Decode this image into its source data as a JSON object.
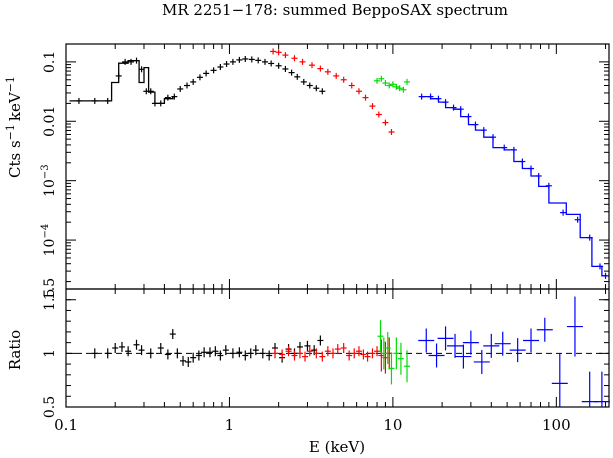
{
  "chart_data": [
    {
      "type": "scatter",
      "panel": "spectrum",
      "title": "MR 2251−178: summed BeppoSAX spectrum",
      "ylabel_main": "Cts s",
      "ylabel_sup1": "−1",
      "ylabel_mid": "keV",
      "ylabel_sup2": "−1",
      "x_scale": "log",
      "y_scale": "log",
      "xlim": [
        0.1,
        210
      ],
      "ylim": [
        1.5e-05,
        0.2
      ],
      "y_ticks": [
        {
          "value": 0.1,
          "label": "0.1",
          "exp": ""
        },
        {
          "value": 0.01,
          "label": "0.01",
          "exp": ""
        },
        {
          "value": 0.001,
          "label": "10",
          "exp": "−3"
        },
        {
          "value": 0.0001,
          "label": "10",
          "exp": "−4"
        },
        {
          "value": 1.5e-05,
          "label": "1.5",
          "exp": ""
        }
      ],
      "grid": false,
      "series": [
        {
          "color": "#000000",
          "points": [
            [
              0.12,
              0.022
            ],
            [
              0.15,
              0.022
            ],
            [
              0.18,
              0.022
            ],
            [
              0.21,
              0.058
            ],
            [
              0.23,
              0.1
            ],
            [
              0.25,
              0.1
            ],
            [
              0.27,
              0.105
            ],
            [
              0.29,
              0.075
            ],
            [
              0.31,
              0.032
            ],
            [
              0.33,
              0.032
            ],
            [
              0.35,
              0.02
            ],
            [
              0.38,
              0.02
            ],
            [
              0.42,
              0.025
            ],
            [
              0.46,
              0.026
            ],
            [
              0.5,
              0.035
            ],
            [
              0.55,
              0.04
            ],
            [
              0.6,
              0.046
            ],
            [
              0.66,
              0.055
            ],
            [
              0.72,
              0.064
            ],
            [
              0.8,
              0.072
            ],
            [
              0.88,
              0.082
            ],
            [
              0.96,
              0.092
            ],
            [
              1.05,
              0.1
            ],
            [
              1.15,
              0.108
            ],
            [
              1.25,
              0.112
            ],
            [
              1.37,
              0.11
            ],
            [
              1.5,
              0.106
            ],
            [
              1.65,
              0.1
            ],
            [
              1.8,
              0.094
            ],
            [
              2.0,
              0.086
            ],
            [
              2.2,
              0.076
            ],
            [
              2.4,
              0.066
            ],
            [
              2.6,
              0.056
            ],
            [
              2.85,
              0.046
            ],
            [
              3.1,
              0.04
            ],
            [
              3.4,
              0.036
            ],
            [
              3.7,
              0.032
            ]
          ],
          "step": [
            [
              0.105,
              0.022
            ],
            [
              0.19,
              0.022
            ],
            [
              0.19,
              0.045
            ],
            [
              0.21,
              0.045
            ],
            [
              0.21,
              0.095
            ],
            [
              0.24,
              0.095
            ],
            [
              0.24,
              0.105
            ],
            [
              0.28,
              0.105
            ],
            [
              0.28,
              0.045
            ],
            [
              0.3,
              0.045
            ],
            [
              0.3,
              0.08
            ],
            [
              0.32,
              0.08
            ],
            [
              0.32,
              0.031
            ],
            [
              0.35,
              0.031
            ],
            [
              0.35,
              0.02
            ],
            [
              0.4,
              0.02
            ],
            [
              0.4,
              0.024
            ],
            [
              0.45,
              0.024
            ],
            [
              0.45,
              0.026
            ]
          ]
        },
        {
          "color": "#ff0000",
          "points": [
            [
              1.85,
              0.15
            ],
            [
              2.0,
              0.145
            ],
            [
              2.2,
              0.13
            ],
            [
              2.5,
              0.115
            ],
            [
              2.8,
              0.1
            ],
            [
              3.2,
              0.088
            ],
            [
              3.6,
              0.077
            ],
            [
              4.0,
              0.068
            ],
            [
              4.5,
              0.058
            ],
            [
              5.0,
              0.05
            ],
            [
              5.6,
              0.04
            ],
            [
              6.2,
              0.032
            ],
            [
              6.8,
              0.025
            ],
            [
              7.5,
              0.018
            ],
            [
              8.2,
              0.013
            ],
            [
              9.0,
              0.0095
            ],
            [
              9.8,
              0.0066
            ]
          ]
        },
        {
          "color": "#00dd00",
          "points": [
            [
              8.0,
              0.048
            ],
            [
              8.5,
              0.052
            ],
            [
              9.0,
              0.044
            ],
            [
              9.5,
              0.04
            ],
            [
              10.0,
              0.042
            ],
            [
              10.5,
              0.038
            ],
            [
              11.0,
              0.036
            ],
            [
              11.6,
              0.034
            ],
            [
              12.2,
              0.046
            ]
          ]
        },
        {
          "color": "#0000ff",
          "points": [
            [
              15.0,
              0.026
            ],
            [
              17.0,
              0.026
            ],
            [
              19.0,
              0.024
            ],
            [
              21.0,
              0.021
            ],
            [
              23.5,
              0.017
            ],
            [
              26.0,
              0.016
            ],
            [
              29.0,
              0.012
            ],
            [
              32.0,
              0.0088
            ],
            [
              36.0,
              0.0071
            ],
            [
              41.0,
              0.0054
            ],
            [
              48.0,
              0.0036
            ],
            [
              55.0,
              0.0033
            ],
            [
              62.0,
              0.0021
            ],
            [
              70.0,
              0.0016
            ],
            [
              78.0,
              0.0012
            ],
            [
              90.0,
              0.00082
            ],
            [
              110.0,
              0.00029
            ],
            [
              135.0,
              0.00022
            ],
            [
              160.0,
              0.00011
            ],
            [
              185.0,
              3.6e-05
            ],
            [
              200.0,
              2.5e-05
            ]
          ],
          "step": [
            [
              15.0,
              0.026
            ],
            [
              17.0,
              0.026
            ],
            [
              17.0,
              0.024
            ],
            [
              19.0,
              0.024
            ],
            [
              19.0,
              0.021
            ],
            [
              21.0,
              0.021
            ],
            [
              21.0,
              0.017
            ],
            [
              23.5,
              0.017
            ],
            [
              23.5,
              0.016
            ],
            [
              26.0,
              0.016
            ],
            [
              26.0,
              0.012
            ],
            [
              29.0,
              0.012
            ],
            [
              29.0,
              0.0088
            ],
            [
              32.0,
              0.0088
            ],
            [
              32.0,
              0.0071
            ],
            [
              36.0,
              0.0071
            ],
            [
              36.0,
              0.0054
            ],
            [
              41.0,
              0.0054
            ],
            [
              41.0,
              0.0036
            ],
            [
              48.0,
              0.0036
            ],
            [
              48.0,
              0.0033
            ],
            [
              55.0,
              0.0033
            ],
            [
              55.0,
              0.0021
            ],
            [
              62.0,
              0.0021
            ],
            [
              62.0,
              0.0016
            ],
            [
              70.0,
              0.0016
            ],
            [
              70.0,
              0.0012
            ],
            [
              78.0,
              0.0012
            ],
            [
              78.0,
              0.0008
            ],
            [
              90.0,
              0.0008
            ],
            [
              90.0,
              0.00042
            ],
            [
              115.0,
              0.00042
            ],
            [
              115.0,
              0.00027
            ],
            [
              140.0,
              0.00027
            ],
            [
              140.0,
              0.00011
            ],
            [
              165.0,
              0.00011
            ],
            [
              165.0,
              3.6e-05
            ],
            [
              190.0,
              3.6e-05
            ],
            [
              190.0,
              2.5e-05
            ],
            [
              205.0,
              2.5e-05
            ]
          ]
        }
      ]
    },
    {
      "type": "scatter",
      "panel": "ratio",
      "ylabel": "Ratio",
      "xlabel": "E (keV)",
      "x_scale": "log",
      "xlim": [
        0.1,
        210
      ],
      "ylim": [
        0.5,
        1.6
      ],
      "reference_line": 1,
      "x_ticks": [
        {
          "value": 0.1,
          "label": "0.1"
        },
        {
          "value": 1,
          "label": "1"
        },
        {
          "value": 10,
          "label": "10"
        },
        {
          "value": 100,
          "label": "100"
        }
      ],
      "y_ticks": [
        {
          "value": 0.5,
          "label": "0.5"
        },
        {
          "value": 1,
          "label": "1"
        },
        {
          "value": 1.5,
          "label": "1.5"
        }
      ],
      "series": [
        {
          "color": "#000000",
          "points": [
            [
              0.15,
              1.0
            ],
            [
              0.18,
              1.0
            ],
            [
              0.2,
              1.05
            ],
            [
              0.22,
              1.06
            ],
            [
              0.24,
              1.02
            ],
            [
              0.27,
              1.08
            ],
            [
              0.29,
              1.03
            ],
            [
              0.33,
              1.0
            ],
            [
              0.38,
              1.05
            ],
            [
              0.42,
              0.99
            ],
            [
              0.45,
              1.18
            ],
            [
              0.48,
              1.0
            ],
            [
              0.52,
              0.93
            ],
            [
              0.56,
              0.92
            ],
            [
              0.6,
              0.96
            ],
            [
              0.65,
              0.98
            ],
            [
              0.7,
              1.01
            ],
            [
              0.76,
              1.01
            ],
            [
              0.82,
              1.02
            ],
            [
              0.88,
              0.98
            ],
            [
              0.95,
              1.03
            ],
            [
              1.05,
              1.0
            ],
            [
              1.15,
              1.01
            ],
            [
              1.25,
              0.98
            ],
            [
              1.35,
              1.0
            ],
            [
              1.45,
              1.03
            ],
            [
              1.6,
              1.0
            ],
            [
              1.75,
              0.98
            ],
            [
              1.9,
              1.05
            ],
            [
              2.1,
              0.96
            ],
            [
              2.3,
              1.04
            ],
            [
              2.5,
              1.0
            ],
            [
              2.7,
              1.06
            ],
            [
              3.0,
              1.07
            ],
            [
              3.3,
              1.03
            ],
            [
              3.6,
              1.12
            ]
          ]
        },
        {
          "color": "#ff0000",
          "points": [
            [
              1.9,
              1.0
            ],
            [
              2.1,
              0.99
            ],
            [
              2.3,
              1.02
            ],
            [
              2.5,
              0.98
            ],
            [
              2.7,
              1.0
            ],
            [
              2.9,
              0.97
            ],
            [
              3.1,
              1.02
            ],
            [
              3.4,
              1.0
            ],
            [
              3.7,
              0.97
            ],
            [
              4.0,
              1.02
            ],
            [
              4.3,
              1.0
            ],
            [
              4.6,
              1.04
            ],
            [
              5.0,
              1.05
            ],
            [
              5.4,
              0.98
            ],
            [
              5.8,
              1.0
            ],
            [
              6.2,
              1.02
            ],
            [
              6.6,
              0.99
            ],
            [
              7.0,
              0.97
            ],
            [
              7.5,
              1.0
            ],
            [
              8.0,
              1.02
            ],
            [
              8.5,
              0.98
            ],
            [
              9.0,
              0.96
            ],
            [
              9.5,
              1.0
            ]
          ]
        },
        {
          "color": "#00dd00",
          "points": [
            [
              8.4,
              1.16
            ],
            [
              8.8,
              1.0
            ],
            [
              9.3,
              1.05
            ],
            [
              9.8,
              0.86
            ],
            [
              10.5,
              1.0
            ],
            [
              11.2,
              0.95
            ],
            [
              12.2,
              0.88
            ]
          ]
        },
        {
          "color": "#0000ff",
          "points": [
            [
              16.0,
              1.12
            ],
            [
              18.5,
              0.98
            ],
            [
              21.0,
              1.14
            ],
            [
              24.0,
              1.07
            ],
            [
              27.0,
              0.97
            ],
            [
              30.0,
              1.1
            ],
            [
              35.0,
              0.92
            ],
            [
              40.0,
              1.07
            ],
            [
              47.0,
              1.09
            ],
            [
              58.0,
              1.03
            ],
            [
              70.0,
              1.12
            ],
            [
              85.0,
              1.22
            ],
            [
              105.0,
              0.72
            ],
            [
              130.0,
              1.25
            ],
            [
              160.0,
              0.55
            ],
            [
              190.0,
              0.55
            ]
          ]
        }
      ]
    }
  ]
}
